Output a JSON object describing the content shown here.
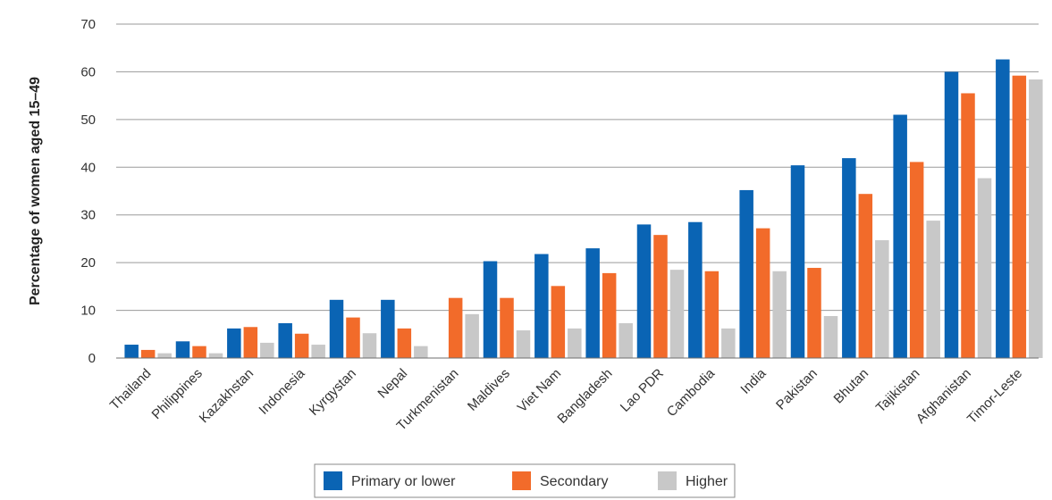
{
  "chart_data": {
    "type": "bar",
    "title": "",
    "xlabel": "",
    "ylabel": "Percentage of women aged 15–49",
    "ylim": [
      0,
      70
    ],
    "yticks": [
      0,
      10,
      20,
      30,
      40,
      50,
      60,
      70
    ],
    "grid": true,
    "legend_position": "bottom",
    "categories": [
      "Thailand",
      "Philippines",
      "Kazakhstan",
      "Indonesia",
      "Kyrgystan",
      "Nepal",
      "Turkmenistan",
      "Maldives",
      "Viet Nam",
      "Bangladesh",
      "Lao PDR",
      "Cambodia",
      "India",
      "Pakistan",
      "Bhutan",
      "Tajikistan",
      "Afghanistan",
      "Timor-Leste"
    ],
    "series": [
      {
        "name": "Primary or lower",
        "color": "#0a64b4",
        "values": [
          2.8,
          3.5,
          6.2,
          7.3,
          12.2,
          12.2,
          null,
          20.3,
          21.8,
          23.0,
          28.0,
          28.5,
          35.2,
          40.4,
          41.9,
          51.0,
          60.0,
          62.6
        ]
      },
      {
        "name": "Secondary",
        "color": "#f26b2a",
        "values": [
          1.7,
          2.5,
          6.5,
          5.1,
          8.5,
          6.2,
          12.6,
          12.6,
          15.1,
          17.8,
          25.8,
          18.2,
          27.2,
          18.9,
          34.4,
          41.1,
          55.5,
          59.2
        ]
      },
      {
        "name": "Higher",
        "color": "#c8c8c8",
        "values": [
          1.0,
          1.0,
          3.2,
          2.8,
          5.2,
          2.5,
          9.2,
          5.8,
          6.2,
          7.3,
          18.5,
          6.2,
          18.2,
          8.8,
          24.7,
          28.8,
          37.7,
          58.4
        ]
      }
    ]
  }
}
